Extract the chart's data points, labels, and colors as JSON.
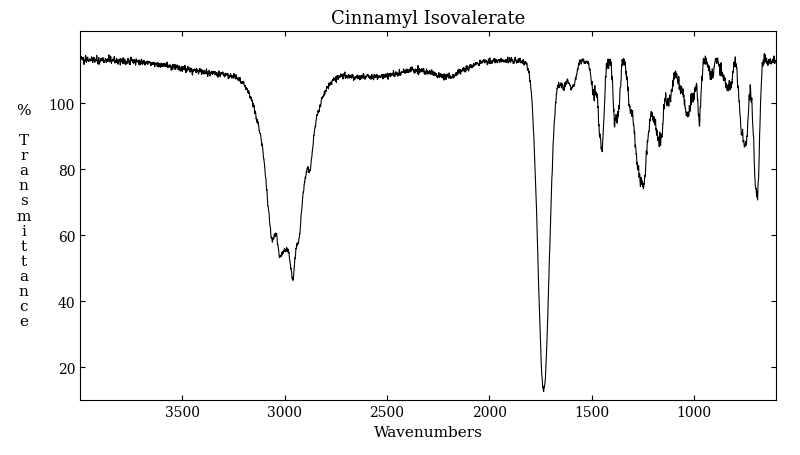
{
  "title": "Cinnamyl Isovalerate",
  "xlabel": "Wavenumbers",
  "ylabel": "%\n\nT\nr\na\nn\ns\nm\ni\nt\nt\na\nn\nc\ne",
  "xmin": 4000,
  "xmax": 600,
  "ymin": 10,
  "ymax": 122,
  "xticks": [
    3500,
    3000,
    2500,
    2000,
    1500,
    1000
  ],
  "yticks": [
    20,
    40,
    60,
    80,
    100
  ],
  "line_color": "#000000",
  "background_color": "#ffffff",
  "title_fontsize": 13,
  "axis_fontsize": 11,
  "tick_fontsize": 10
}
